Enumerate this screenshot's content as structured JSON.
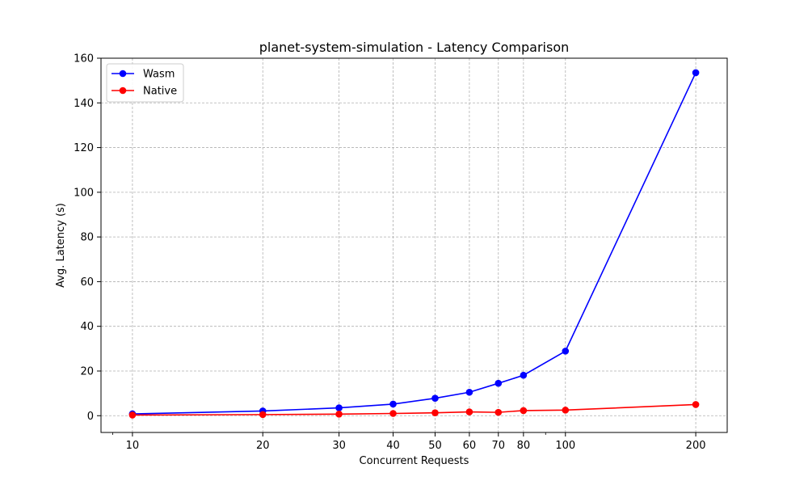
{
  "chart_data": {
    "type": "line",
    "title": "planet-system-simulation - Latency Comparison",
    "xlabel": "Concurrent Requests",
    "ylabel": "Avg. Latency (s)",
    "xscale": "log",
    "x": [
      10,
      20,
      30,
      40,
      50,
      60,
      70,
      80,
      100,
      200
    ],
    "xticks": [
      "10",
      "20",
      "30",
      "40",
      "50",
      "60",
      "70",
      "80",
      "100",
      "200"
    ],
    "yticks": [
      "0",
      "20",
      "40",
      "60",
      "80",
      "100",
      "120",
      "140",
      "160"
    ],
    "ylim": [
      -7.5,
      160
    ],
    "grid": true,
    "legend_position": "top-left",
    "series": [
      {
        "name": "Wasm",
        "color": "#0000ff",
        "values": [
          0.8,
          2.1,
          3.5,
          5.2,
          7.8,
          10.5,
          14.5,
          18.1,
          28.9,
          153.5
        ]
      },
      {
        "name": "Native",
        "color": "#ff0000",
        "values": [
          0.3,
          0.5,
          0.7,
          1.0,
          1.3,
          1.7,
          1.5,
          2.3,
          2.5,
          5.0
        ]
      }
    ]
  }
}
